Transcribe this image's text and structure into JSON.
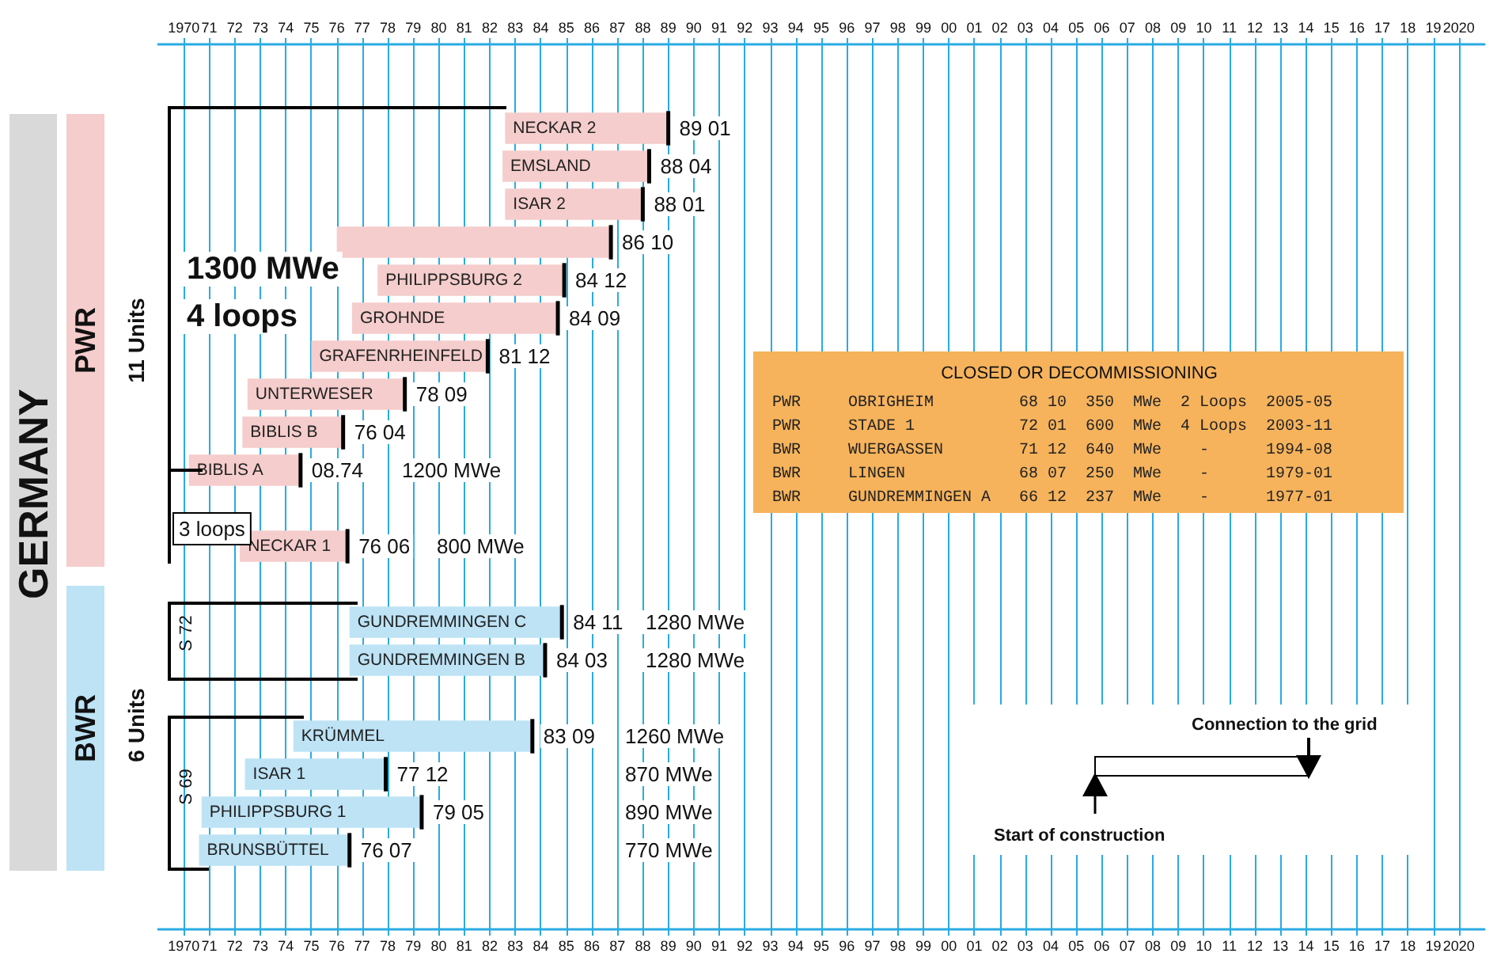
{
  "chart_data": {
    "type": "bar",
    "orientation": "horizontal",
    "categories": [
      "NECKAR 2",
      "EMSLAND",
      "ISAR 2",
      null,
      "PHILIPPSBURG 2",
      "GROHNDE",
      "GRAFENRHEINFELD",
      "UNTERWESER",
      "BIBLIS B",
      "BIBLIS A",
      null,
      "NECKAR 1",
      null,
      "GUNDREMMINGEN C",
      "GUNDREMMINGEN B",
      null,
      "KRÜMMEL",
      "ISAR 1",
      "PHILIPPSBURG 1",
      "BRUNSBÜTTEL"
    ],
    "base": [
      1982.6,
      1982.5,
      1982.6,
      1976.0,
      1977.6,
      1976.6,
      1975.0,
      1972.5,
      1972.3,
      1970.2,
      null,
      1972.2,
      null,
      1976.5,
      1976.5,
      null,
      1974.3,
      1972.4,
      1970.7,
      1970.6
    ],
    "values": [
      6.4,
      5.75,
      5.4,
      10.75,
      7.32,
      8.07,
      6.92,
      6.17,
      3.95,
      4.38,
      null,
      4.22,
      null,
      8.33,
      7.67,
      null,
      9.37,
      5.52,
      8.63,
      5.9
    ],
    "colors": [
      "#f5cdcc",
      "#f5cdcc",
      "#f5cdcc",
      "#f5cdcc",
      "#f5cdcc",
      "#f5cdcc",
      "#f5cdcc",
      "#f5cdcc",
      "#f5cdcc",
      "#f5cdcc",
      null,
      "#f5cdcc",
      null,
      "#bde3f5",
      "#bde3f5",
      null,
      "#bde3f5",
      "#bde3f5",
      "#bde3f5",
      "#bde3f5"
    ],
    "xlim": [
      1969,
      2021
    ],
    "xticks": [
      1970,
      {
        "value": 1971,
        "label": "71"
      },
      {
        "value": 1972,
        "label": "72"
      },
      {
        "value": 1973,
        "label": "73"
      },
      {
        "value": 1974,
        "label": "74"
      },
      {
        "value": 1975,
        "label": "75"
      },
      {
        "value": 1976,
        "label": "76"
      },
      {
        "value": 1977,
        "label": "77"
      },
      {
        "value": 1978,
        "label": "78"
      },
      {
        "value": 1979,
        "label": "79"
      },
      {
        "value": 1980,
        "label": "80"
      },
      {
        "value": 1981,
        "label": "81"
      },
      {
        "value": 1982,
        "label": "82"
      },
      {
        "value": 1983,
        "label": "83"
      },
      {
        "value": 1984,
        "label": "84"
      },
      {
        "value": 1985,
        "label": "85"
      },
      {
        "value": 1986,
        "label": "86"
      },
      {
        "value": 1987,
        "label": "87"
      },
      {
        "value": 1988,
        "label": "88"
      },
      {
        "value": 1989,
        "label": "89"
      },
      {
        "value": 1990,
        "label": "90"
      },
      {
        "value": 1991,
        "label": "91"
      },
      {
        "value": 1992,
        "label": "92"
      },
      {
        "value": 1993,
        "label": "93"
      },
      {
        "value": 1994,
        "label": "94"
      },
      {
        "value": 1995,
        "label": "95"
      },
      {
        "value": 1996,
        "label": "96"
      },
      {
        "value": 1997,
        "label": "97"
      },
      {
        "value": 1998,
        "label": "98"
      },
      {
        "value": 1999,
        "label": "99"
      },
      {
        "value": 2000,
        "label": "00"
      },
      {
        "value": 2001,
        "label": "01"
      },
      {
        "value": 2002,
        "label": "02"
      },
      {
        "value": 2003,
        "label": "03"
      },
      {
        "value": 2004,
        "label": "04"
      },
      {
        "value": 2005,
        "label": "05"
      },
      {
        "value": 2006,
        "label": "06"
      },
      {
        "value": 2007,
        "label": "07"
      },
      {
        "value": 2008,
        "label": "08"
      },
      {
        "value": 2009,
        "label": "09"
      },
      {
        "value": 2010,
        "label": "10"
      },
      {
        "value": 2011,
        "label": "11"
      },
      {
        "value": 2012,
        "label": "12"
      },
      {
        "value": 2013,
        "label": "13"
      },
      {
        "value": 2014,
        "label": "14"
      },
      {
        "value": 2015,
        "label": "15"
      },
      {
        "value": 2016,
        "label": "16"
      },
      {
        "value": 2017,
        "label": "17"
      },
      {
        "value": 2018,
        "label": "18"
      },
      {
        "value": 2019,
        "label": "19"
      },
      2020
    ],
    "x2lim": [
      1969,
      2021
    ],
    "x2ticks": [
      1970,
      {
        "value": 1971,
        "label": "71"
      },
      {
        "value": 1972,
        "label": "72"
      },
      {
        "value": 1973,
        "label": "73"
      },
      {
        "value": 1974,
        "label": "74"
      },
      {
        "value": 1975,
        "label": "75"
      },
      {
        "value": 1976,
        "label": "76"
      },
      {
        "value": 1977,
        "label": "77"
      },
      {
        "value": 1978,
        "label": "78"
      },
      {
        "value": 1979,
        "label": "79"
      },
      {
        "value": 1980,
        "label": "80"
      },
      {
        "value": 1981,
        "label": "81"
      },
      {
        "value": 1982,
        "label": "82"
      },
      {
        "value": 1983,
        "label": "83"
      },
      {
        "value": 1984,
        "label": "84"
      },
      {
        "value": 1985,
        "label": "85"
      },
      {
        "value": 1986,
        "label": "86"
      },
      {
        "value": 1987,
        "label": "87"
      },
      {
        "value": 1988,
        "label": "88"
      },
      {
        "value": 1989,
        "label": "89"
      },
      {
        "value": 1990,
        "label": "90"
      },
      {
        "value": 1991,
        "label": "91"
      },
      {
        "value": 1992,
        "label": "92"
      },
      {
        "value": 1993,
        "label": "93"
      },
      {
        "value": 1994,
        "label": "94"
      },
      {
        "value": 1995,
        "label": "95"
      },
      {
        "value": 1996,
        "label": "96"
      },
      {
        "value": 1997,
        "label": "97"
      },
      {
        "value": 1998,
        "label": "98"
      },
      {
        "value": 1999,
        "label": "99"
      },
      {
        "value": 2000,
        "label": "00"
      },
      {
        "value": 2001,
        "label": "01"
      },
      {
        "value": 2002,
        "label": "02"
      },
      {
        "value": 2003,
        "label": "03"
      },
      {
        "value": 2004,
        "label": "04"
      },
      {
        "value": 2005,
        "label": "05"
      },
      {
        "value": 2006,
        "label": "06"
      },
      {
        "value": 2007,
        "label": "07"
      },
      {
        "value": 2008,
        "label": "08"
      },
      {
        "value": 2009,
        "label": "09"
      },
      {
        "value": 2010,
        "label": "10"
      },
      {
        "value": 2011,
        "label": "11"
      },
      {
        "value": 2012,
        "label": "12"
      },
      {
        "value": 2013,
        "label": "13"
      },
      {
        "value": 2014,
        "label": "14"
      },
      {
        "value": 2015,
        "label": "15"
      },
      {
        "value": 2016,
        "label": "16"
      },
      {
        "value": 2017,
        "label": "17"
      },
      {
        "value": 2018,
        "label": "18"
      },
      {
        "value": 2019,
        "label": "19"
      },
      2020
    ],
    "tick_labels": "x",
    "grid": "x",
    "annotations": [
      "GERMANY",
      "PWR",
      "BWR",
      "11 Units",
      "6 Units",
      "1300 MWe",
      "4 loops",
      "3 loops",
      "S 72",
      "S 69",
      "CLOSED OR DECOMMISSIONING",
      "PWR\tOBRIGHEIM\t68 10\t350\tMWe\t2\tLoops\t2005-05",
      "PWR\tSTADE 1\t72 01\t600\tMWe\t4\tLoops\t2003-11",
      "BWR\tWUERGASSEN\t71 12\t640\tMWe\t\t-\t1994-08",
      "BWR\tLINGEN\t68 07\t250\tMWe\t\t-\t1979-01",
      "BWR\tGUNDREMMINGEN A\t66 12\t237\tMWe\t\t-\t1977-01",
      "Connection to the grid",
      "Start of construction",
      "1200 MWe",
      "800 MWe",
      "1280 MWe",
      "1280 MWe",
      "1260 MWe",
      "870 MWe",
      "890 MWe",
      "770 MWe",
      {
        "text": "89 01",
        "x": 1989.0,
        "y": "NECKAR 2"
      },
      {
        "text": "88 04",
        "x": 1988.25,
        "y": "EMSLAND"
      },
      {
        "text": "88 01",
        "x": 1988.0,
        "y": "ISAR 2"
      },
      {
        "text": "86 10",
        "x": 1986.75
      },
      {
        "text": "84 12",
        "x": 1984.92,
        "y": "PHILIPPSBURG 2"
      },
      {
        "text": "84 09",
        "x": 1984.67,
        "y": "GROHNDE"
      },
      {
        "text": "81 12",
        "x": 1981.92,
        "y": "GRAFENRHEINFELD"
      },
      {
        "text": "78 09",
        "x": 1978.67,
        "y": "UNTERWESER"
      },
      {
        "text": "76 04",
        "x": 1976.25,
        "y": "BIBLIS B"
      },
      {
        "text": "08.74",
        "x": 1974.58,
        "y": "BIBLIS A"
      },
      {
        "text": "76 06",
        "x": 1976.42,
        "y": "NECKAR 1"
      },
      {
        "text": "84 11",
        "x": 1984.83,
        "y": "GUNDREMMINGEN C"
      },
      {
        "text": "84 03",
        "x": 1984.17,
        "y": "GUNDREMMINGEN B"
      },
      {
        "text": "83 09",
        "x": 1983.67,
        "y": "KRÜMMEL"
      },
      {
        "text": "77 12",
        "x": 1977.92,
        "y": "ISAR 1"
      },
      {
        "text": "79 05",
        "x": 1979.33,
        "y": "PHILIPPSBURG 1"
      },
      {
        "text": "76 07",
        "x": 1976.5,
        "y": "BRUNSBÜTTEL"
      }
    ]
  }
}
